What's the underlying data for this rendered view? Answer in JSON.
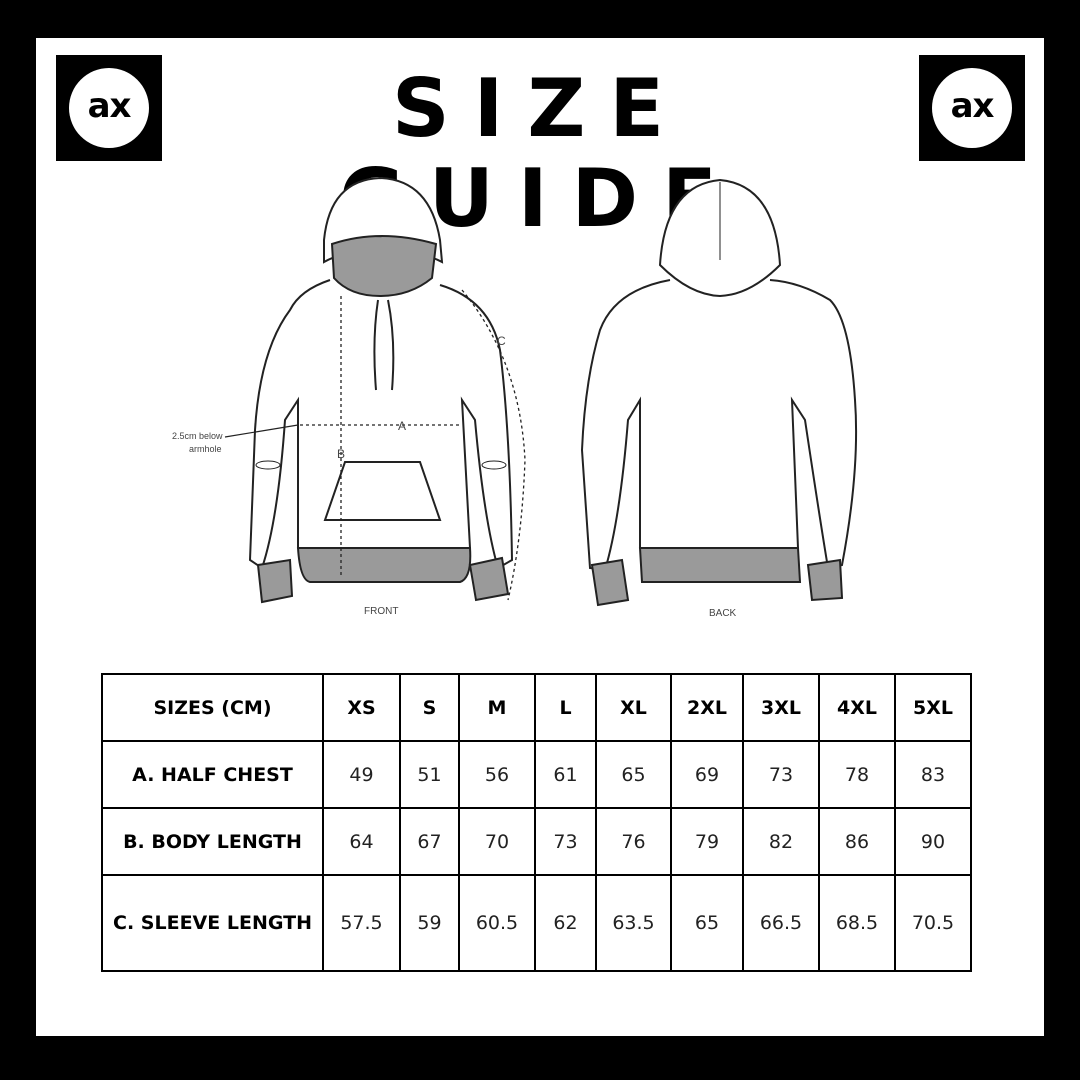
{
  "header": {
    "title": "SIZE GUIDE",
    "logo_text": "ax"
  },
  "diagram": {
    "front_label": "FRONT",
    "back_label": "BACK",
    "annotation": [
      "2.5cm below",
      "armhole"
    ],
    "measure_a": "A",
    "measure_b": "B",
    "measure_c": "C"
  },
  "table": {
    "header": [
      "SIZES (CM)",
      "XS",
      "S",
      "M",
      "L",
      "XL",
      "2XL",
      "3XL",
      "4XL",
      "5XL"
    ],
    "rows": [
      [
        "A. HALF CHEST",
        "49",
        "51",
        "56",
        "61",
        "65",
        "69",
        "73",
        "78",
        "83"
      ],
      [
        "B. BODY LENGTH",
        "64",
        "67",
        "70",
        "73",
        "76",
        "79",
        "82",
        "86",
        "90"
      ],
      [
        "C. SLEEVE LENGTH",
        "57.5",
        "59",
        "60.5",
        "62",
        "63.5",
        "65",
        "66.5",
        "68.5",
        "70.5"
      ]
    ]
  },
  "colors": {
    "frame": "#000000",
    "rib": "#9a9a9a"
  }
}
